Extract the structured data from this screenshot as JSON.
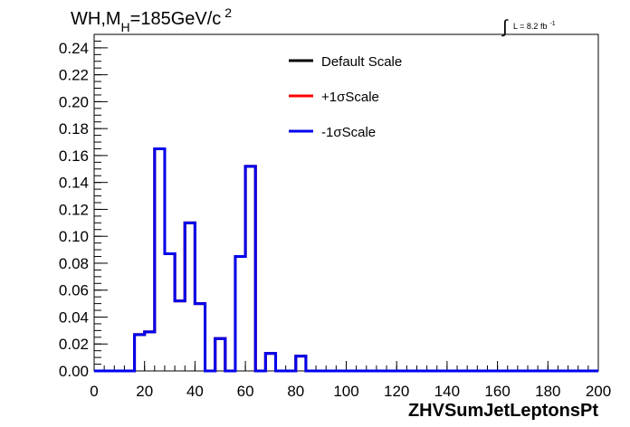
{
  "chart_data": {
    "type": "line",
    "title": {
      "prefix": "WH,M",
      "subscript": "H",
      "middle": "=185GeV/c",
      "superscript": "2"
    },
    "lumi": {
      "integral_sign": "∫",
      "text": "L = 8.2 fb",
      "superscript": "-1"
    },
    "xlabel": "ZHVSumJetLeptonsPt",
    "ylabel": "",
    "xlim": [
      0,
      200
    ],
    "ylim": [
      0,
      0.25
    ],
    "xticks": [
      {
        "value": 0,
        "label": "0"
      },
      {
        "value": 20,
        "label": "20"
      },
      {
        "value": 40,
        "label": "40"
      },
      {
        "value": 60,
        "label": "60"
      },
      {
        "value": 80,
        "label": "80"
      },
      {
        "value": 100,
        "label": "100"
      },
      {
        "value": 120,
        "label": "120"
      },
      {
        "value": 140,
        "label": "140"
      },
      {
        "value": 160,
        "label": "160"
      },
      {
        "value": 180,
        "label": "180"
      },
      {
        "value": 200,
        "label": "200"
      }
    ],
    "yticks": [
      {
        "value": 0.0,
        "label": "0.00"
      },
      {
        "value": 0.02,
        "label": "0.02"
      },
      {
        "value": 0.04,
        "label": "0.04"
      },
      {
        "value": 0.06,
        "label": "0.06"
      },
      {
        "value": 0.08,
        "label": "0.08"
      },
      {
        "value": 0.1,
        "label": "0.10"
      },
      {
        "value": 0.12,
        "label": "0.12"
      },
      {
        "value": 0.14,
        "label": "0.14"
      },
      {
        "value": 0.16,
        "label": "0.16"
      },
      {
        "value": 0.18,
        "label": "0.18"
      },
      {
        "value": 0.2,
        "label": "0.20"
      },
      {
        "value": 0.22,
        "label": "0.22"
      },
      {
        "value": 0.24,
        "label": "0.24"
      }
    ],
    "bin_edges": [
      0,
      4,
      8,
      12,
      16,
      20,
      24,
      28,
      32,
      36,
      40,
      44,
      48,
      52,
      56,
      60,
      64,
      68,
      72,
      76,
      80,
      84,
      88,
      92,
      96,
      100,
      104,
      108,
      112,
      116,
      120,
      124,
      128,
      132,
      136,
      140,
      144,
      148,
      152,
      156,
      160,
      164,
      168,
      172,
      176,
      180,
      184,
      188,
      192,
      196,
      200
    ],
    "series": [
      {
        "name": "Default Scale",
        "color": "#000000",
        "values": [
          0,
          0,
          0,
          0,
          0.027,
          0.029,
          0.165,
          0.087,
          0.052,
          0.11,
          0.05,
          0,
          0.024,
          0,
          0.085,
          0.152,
          0,
          0.013,
          0,
          0,
          0.011,
          0,
          0,
          0,
          0,
          0,
          0,
          0,
          0,
          0,
          0,
          0,
          0,
          0,
          0,
          0,
          0,
          0,
          0,
          0,
          0,
          0,
          0,
          0,
          0,
          0,
          0,
          0,
          0,
          0
        ]
      },
      {
        "name": "+1σScale",
        "color": "#ff0000",
        "values": [
          0,
          0,
          0,
          0,
          0.027,
          0.029,
          0.165,
          0.087,
          0.052,
          0.11,
          0.05,
          0,
          0.024,
          0,
          0.085,
          0.152,
          0,
          0.013,
          0,
          0,
          0.011,
          0,
          0,
          0,
          0,
          0,
          0,
          0,
          0,
          0,
          0,
          0,
          0,
          0,
          0,
          0,
          0,
          0,
          0,
          0,
          0,
          0,
          0,
          0,
          0,
          0,
          0,
          0,
          0,
          0
        ]
      },
      {
        "name": "-1σScale",
        "color": "#0000ee",
        "values": [
          0,
          0,
          0,
          0,
          0.027,
          0.029,
          0.165,
          0.087,
          0.052,
          0.11,
          0.05,
          0,
          0.024,
          0,
          0.085,
          0.152,
          0,
          0.013,
          0,
          0,
          0.011,
          0,
          0,
          0,
          0,
          0,
          0,
          0,
          0,
          0,
          0,
          0,
          0,
          0,
          0,
          0,
          0,
          0,
          0,
          0,
          0,
          0,
          0,
          0,
          0,
          0,
          0,
          0,
          0,
          0
        ]
      }
    ],
    "legend_placement": "top-center",
    "grid": false
  }
}
